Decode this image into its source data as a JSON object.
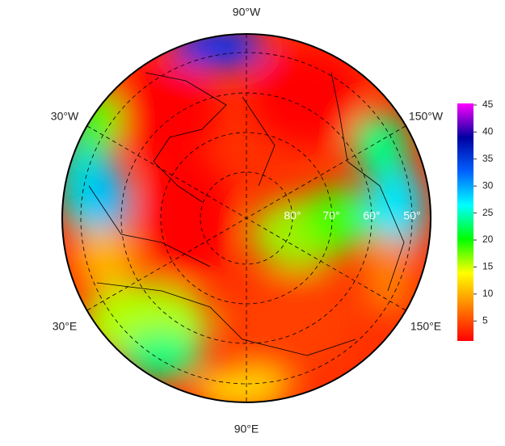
{
  "map": {
    "lon_labels": [
      "90°W",
      "30°W",
      "150°W",
      "30°E",
      "150°E",
      "90°E"
    ],
    "lat_labels": [
      "80°",
      "70°",
      "60°",
      "50°"
    ],
    "colorbar": {
      "lim": [
        1.3,
        45.3
      ],
      "ticks": [
        5,
        10,
        15,
        20,
        25,
        30,
        35,
        40,
        45
      ],
      "colors": [
        "#ff0000",
        "#ff8000",
        "#ffff00",
        "#00ff00",
        "#00ffff",
        "#0060ff",
        "#0000a0",
        "#ff00ff"
      ]
    }
  }
}
